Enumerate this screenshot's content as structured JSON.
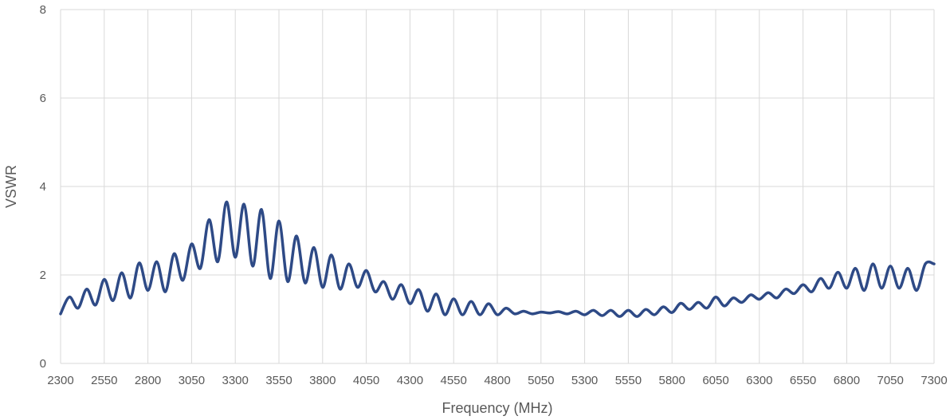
{
  "chart_data": {
    "type": "line",
    "title": "",
    "xlabel": "Frequency (MHz)",
    "ylabel": "VSWR",
    "xlim": [
      2300,
      7300
    ],
    "ylim": [
      0,
      8
    ],
    "x_ticks": [
      "2300",
      "2550",
      "2800",
      "3050",
      "3300",
      "3550",
      "3800",
      "4050",
      "4300",
      "4550",
      "4800",
      "5050",
      "5300",
      "5550",
      "5800",
      "6050",
      "6300",
      "6550",
      "6800",
      "7050",
      "7300"
    ],
    "y_ticks": [
      "0",
      "2",
      "4",
      "6",
      "8"
    ],
    "grid": "vertical and horizontal",
    "legend": "none",
    "line_color": "#2e4a86",
    "series": [
      {
        "x": [
          2300,
          2350,
          2400,
          2450,
          2500,
          2550,
          2600,
          2650,
          2700,
          2750,
          2800,
          2850,
          2900,
          2950,
          3000,
          3050,
          3100,
          3150,
          3200,
          3250,
          3300,
          3350,
          3400,
          3450,
          3500,
          3550,
          3600,
          3650,
          3700,
          3750,
          3800,
          3850,
          3900,
          3950,
          4000,
          4050,
          4100,
          4150,
          4200,
          4250,
          4300,
          4350,
          4400,
          4450,
          4500,
          4550,
          4600,
          4650,
          4700,
          4750,
          4800,
          4850,
          4900,
          4950,
          5000,
          5050,
          5100,
          5150,
          5200,
          5250,
          5300,
          5350,
          5400,
          5450,
          5500,
          5550,
          5600,
          5650,
          5700,
          5750,
          5800,
          5850,
          5900,
          5950,
          6000,
          6050,
          6100,
          6150,
          6200,
          6250,
          6300,
          6350,
          6400,
          6450,
          6500,
          6550,
          6600,
          6650,
          6700,
          6750,
          6800,
          6850,
          6900,
          6950,
          7000,
          7050,
          7100,
          7150,
          7200,
          7250,
          7300
        ],
        "values": [
          1.12,
          1.5,
          1.25,
          1.68,
          1.32,
          1.9,
          1.42,
          2.05,
          1.48,
          2.27,
          1.65,
          2.3,
          1.62,
          2.48,
          1.88,
          2.7,
          2.15,
          3.25,
          2.3,
          3.65,
          2.4,
          3.6,
          2.2,
          3.48,
          1.92,
          3.22,
          1.85,
          2.88,
          1.82,
          2.62,
          1.72,
          2.45,
          1.68,
          2.25,
          1.72,
          2.1,
          1.62,
          1.85,
          1.45,
          1.78,
          1.35,
          1.67,
          1.18,
          1.57,
          1.1,
          1.46,
          1.1,
          1.4,
          1.1,
          1.35,
          1.1,
          1.25,
          1.12,
          1.18,
          1.12,
          1.16,
          1.14,
          1.17,
          1.12,
          1.18,
          1.1,
          1.2,
          1.08,
          1.2,
          1.06,
          1.2,
          1.06,
          1.22,
          1.1,
          1.28,
          1.15,
          1.36,
          1.22,
          1.38,
          1.25,
          1.5,
          1.3,
          1.48,
          1.38,
          1.55,
          1.45,
          1.6,
          1.48,
          1.68,
          1.58,
          1.78,
          1.62,
          1.92,
          1.7,
          2.06,
          1.7,
          2.15,
          1.65,
          2.25,
          1.7,
          2.2,
          1.7,
          2.15,
          1.65,
          2.25,
          2.25
        ]
      }
    ]
  }
}
